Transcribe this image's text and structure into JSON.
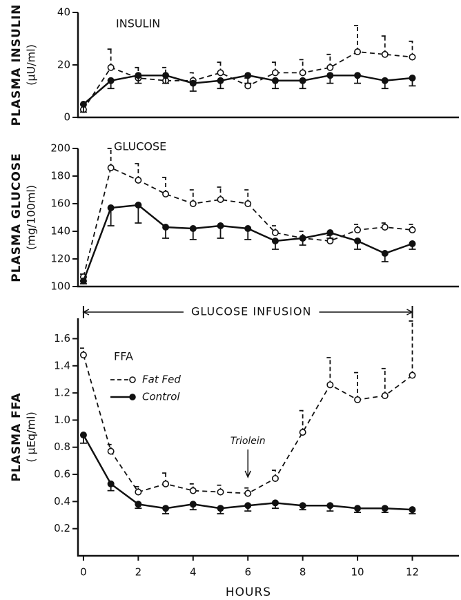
{
  "chart_data": [
    {
      "type": "line",
      "title": "INSULIN",
      "ylabel": "PLASMA INSULIN",
      "ylabel_units": "(μU/ml)",
      "x": [
        0,
        1,
        2,
        3,
        4,
        5,
        6,
        7,
        8,
        9,
        10,
        11,
        12
      ],
      "xlim": [
        -0.2,
        13.7
      ],
      "ylim": [
        0,
        40
      ],
      "yticks": [
        0,
        20,
        40
      ],
      "series": [
        {
          "color": "#111111",
          "dashed": true,
          "marker": "open",
          "error_direction": "up",
          "values": [
            3,
            19,
            15,
            14,
            14,
            17,
            12,
            17,
            17,
            19,
            25,
            24,
            23
          ],
          "errors": [
            2,
            7,
            4,
            5,
            3,
            4,
            3,
            4,
            5,
            5,
            10,
            7,
            6
          ]
        },
        {
          "color": "#111111",
          "dashed": false,
          "marker": "filled",
          "error_direction": "down",
          "values": [
            5,
            14,
            16,
            16,
            13,
            14,
            16,
            14,
            14,
            16,
            16,
            14,
            15
          ],
          "errors": [
            3,
            3,
            3,
            3,
            3,
            3,
            3,
            3,
            3,
            3,
            3,
            3,
            3
          ]
        }
      ]
    },
    {
      "type": "line",
      "title": "GLUCOSE",
      "ylabel": "PLASMA GLUCOSE",
      "ylabel_units": "(mg/100ml)",
      "x": [
        0,
        1,
        2,
        3,
        4,
        5,
        6,
        7,
        8,
        9,
        10,
        11,
        12
      ],
      "xlim": [
        -0.2,
        13.7
      ],
      "ylim": [
        100,
        200
      ],
      "yticks": [
        100,
        120,
        140,
        160,
        180,
        200
      ],
      "series": [
        {
          "color": "#111111",
          "dashed": true,
          "marker": "open",
          "error_direction": "up",
          "values": [
            107,
            186,
            177,
            167,
            160,
            163,
            160,
            139,
            135,
            133,
            141,
            143,
            141
          ],
          "errors": [
            2,
            14,
            12,
            12,
            10,
            9,
            10,
            5,
            5,
            4,
            4,
            3,
            4
          ]
        },
        {
          "color": "#111111",
          "dashed": false,
          "marker": "filled",
          "error_direction": "down",
          "values": [
            104,
            157,
            159,
            143,
            142,
            144,
            142,
            133,
            135,
            139,
            133,
            124,
            131
          ],
          "errors": [
            2,
            13,
            13,
            8,
            8,
            9,
            8,
            6,
            5,
            4,
            6,
            6,
            4
          ]
        }
      ]
    },
    {
      "type": "line",
      "title": "FFA",
      "ylabel": "PLASMA FFA",
      "ylabel_units": "( μEq/ml)",
      "xlabel": "HOURS",
      "x": [
        0,
        1,
        2,
        3,
        4,
        5,
        6,
        7,
        8,
        9,
        10,
        11,
        12
      ],
      "xlim": [
        -0.2,
        13.7
      ],
      "xticks": [
        0,
        2,
        4,
        6,
        8,
        10,
        12
      ],
      "ylim": [
        0,
        1.75
      ],
      "yticks": [
        0.2,
        0.4,
        0.6,
        0.8,
        {
          "value": 1.0,
          "label": "1.0"
        },
        1.2,
        1.4,
        1.6
      ],
      "legend": "upper left",
      "span_label": "GLUCOSE INFUSION",
      "span": [
        0,
        12
      ],
      "arrow_label": "Triolein",
      "arrow_x": 6,
      "arrow_y": 0.58,
      "series": [
        {
          "name": "Fat Fed",
          "color": "#111111",
          "dashed": true,
          "marker": "open",
          "error_direction": "up",
          "values": [
            1.48,
            0.77,
            0.47,
            0.53,
            0.48,
            0.47,
            0.46,
            0.57,
            0.91,
            1.26,
            1.15,
            1.18,
            1.33
          ],
          "errors": [
            0.05,
            0.05,
            0.04,
            0.08,
            0.05,
            0.05,
            0.04,
            0.06,
            0.16,
            0.2,
            0.2,
            0.2,
            0.4
          ]
        },
        {
          "name": "Control",
          "color": "#111111",
          "dashed": false,
          "marker": "filled",
          "error_direction": "down",
          "values": [
            0.89,
            0.53,
            0.38,
            0.35,
            0.38,
            0.35,
            0.37,
            0.39,
            0.37,
            0.37,
            0.35,
            0.35,
            0.34
          ],
          "errors": [
            0.06,
            0.05,
            0.03,
            0.04,
            0.04,
            0.04,
            0.04,
            0.04,
            0.03,
            0.04,
            0.03,
            0.03,
            0.03
          ]
        }
      ]
    }
  ]
}
